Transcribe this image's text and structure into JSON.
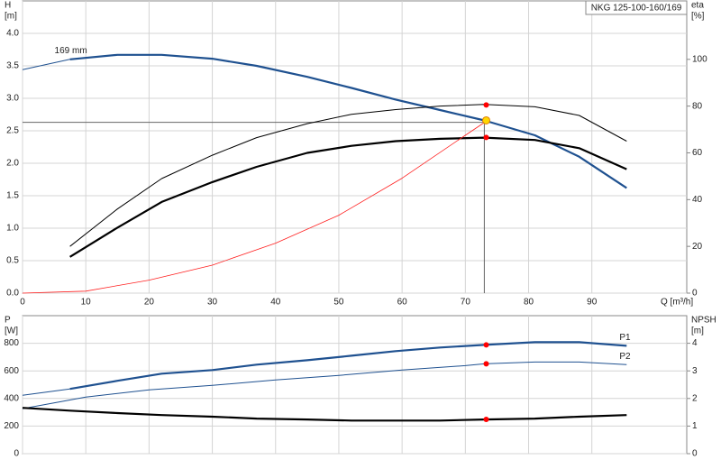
{
  "chart_data": [
    {
      "type": "line",
      "title": "NKG 125-100-160/169",
      "xlabel": "Q [m³/h]",
      "ylabel": [
        "H",
        "[m]"
      ],
      "y2label": [
        "eta",
        "[%]"
      ],
      "xlim": [
        0,
        105
      ],
      "xticks": [
        0,
        10,
        20,
        30,
        40,
        50,
        60,
        70,
        80,
        90
      ],
      "ylim": [
        0,
        4.5
      ],
      "yticks": [
        {
          "value": 0,
          "label": "0.0"
        },
        {
          "value": 0.5,
          "label": "0.5"
        },
        {
          "value": 1,
          "label": "1.0"
        },
        {
          "value": 1.5,
          "label": "1.5"
        },
        {
          "value": 2,
          "label": "2.0"
        },
        {
          "value": 2.5,
          "label": "2.5"
        },
        {
          "value": 3,
          "label": "3.0"
        },
        {
          "value": 3.5,
          "label": "3.5"
        },
        {
          "value": 4,
          "label": "4.0"
        }
      ],
      "y2lim": [
        0,
        125
      ],
      "y2ticks": [
        0,
        20,
        40,
        60,
        80,
        100
      ],
      "grid": true,
      "annotations": [
        {
          "text": "169 mm",
          "x": 2.5,
          "y": 3.73
        }
      ],
      "crosshair": {
        "x": 73,
        "y": 2.63
      },
      "series": [
        {
          "color": "#1f5190",
          "width": 1,
          "x": [
            0,
            7.5
          ],
          "values": [
            3.44,
            3.6
          ]
        },
        {
          "color": "#1f5190",
          "width": 2.2,
          "x": [
            7.5,
            15,
            22,
            30,
            37,
            45,
            52,
            59,
            66,
            73,
            81,
            88,
            95.5
          ],
          "values": [
            3.6,
            3.67,
            3.67,
            3.61,
            3.5,
            3.33,
            3.16,
            2.98,
            2.82,
            2.66,
            2.43,
            2.1,
            1.62
          ]
        },
        {
          "color": "#000000",
          "width": 1,
          "axis": "y2",
          "x": [
            7.5,
            15,
            22,
            30,
            37,
            45,
            52,
            59,
            66,
            73,
            81,
            88,
            95.5
          ],
          "values": [
            20,
            36,
            49,
            59,
            66.5,
            72.5,
            76.5,
            78.5,
            80,
            80.7,
            79.7,
            76,
            65
          ]
        },
        {
          "color": "#000000",
          "width": 2.2,
          "axis": "y2",
          "x": [
            7.5,
            15,
            22,
            30,
            37,
            45,
            52,
            59,
            66,
            73,
            81,
            88,
            95.5
          ],
          "values": [
            15.5,
            28,
            39,
            47.5,
            54,
            60,
            63,
            65,
            66,
            66.5,
            65.5,
            62,
            53
          ]
        },
        {
          "color": "#ff2020",
          "width": 0.8,
          "x": [
            0,
            10,
            20,
            30,
            40,
            50,
            60,
            70,
            73.5
          ],
          "values": [
            0,
            0.03,
            0.2,
            0.43,
            0.77,
            1.2,
            1.77,
            2.43,
            2.66
          ]
        },
        {
          "color": "#ff0000",
          "marker": true,
          "axis": "y2",
          "x": [
            73.3,
            73.3
          ],
          "values": [
            80.5,
            66.6
          ]
        },
        {
          "color": "#ffd700",
          "stroke": "#e08000",
          "marker": true,
          "x": [
            73.3
          ],
          "values": [
            2.66
          ]
        }
      ]
    },
    {
      "type": "line",
      "ylabel": [
        "P",
        "[W]"
      ],
      "y2label": [
        "NPSH",
        "[m]"
      ],
      "xlim": [
        0,
        105
      ],
      "ylim": [
        0,
        1000
      ],
      "yticks": [
        0,
        200,
        400,
        600,
        800
      ],
      "y2lim": [
        0,
        5
      ],
      "y2ticks": [
        0,
        1,
        2,
        3,
        4
      ],
      "grid": true,
      "series": [
        {
          "color": "#1f5190",
          "width": 1,
          "x": [
            0,
            7.5
          ],
          "values": [
            423,
            469
          ]
        },
        {
          "name": "P1",
          "color": "#1f5190",
          "width": 2.2,
          "x": [
            7.5,
            15,
            22,
            30,
            37,
            45,
            52,
            59,
            66,
            73,
            81,
            88,
            95.5
          ],
          "values": [
            469,
            528,
            580,
            606,
            645,
            677,
            710,
            743,
            769,
            788,
            808,
            808,
            782
          ]
        },
        {
          "name": "P2",
          "color": "#1f5190",
          "width": 1,
          "x": [
            0,
            10,
            20,
            30,
            40,
            50,
            60,
            70,
            73,
            81,
            88,
            95.5
          ],
          "values": [
            326,
            410,
            463,
            495,
            534,
            567,
            606,
            638,
            651,
            664,
            664,
            645
          ]
        },
        {
          "color": "#000000",
          "width": 2.2,
          "axis": "y2",
          "x": [
            0,
            7.5,
            15,
            22,
            30,
            37,
            45,
            52,
            59,
            66,
            73,
            81,
            88,
            95.5
          ],
          "values": [
            1.66,
            1.56,
            1.47,
            1.4,
            1.34,
            1.27,
            1.24,
            1.2,
            1.2,
            1.2,
            1.24,
            1.27,
            1.34,
            1.4
          ]
        },
        {
          "color": "#ff0000",
          "marker": true,
          "x": [
            73.3,
            73.3
          ],
          "values": [
            788,
            651
          ]
        },
        {
          "color": "#ff0000",
          "marker": true,
          "axis": "y2",
          "x": [
            73.3
          ],
          "values": [
            1.24
          ]
        }
      ]
    }
  ]
}
